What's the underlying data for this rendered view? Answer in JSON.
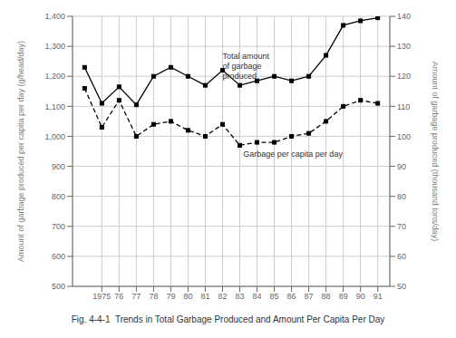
{
  "chart_data": {
    "type": "line",
    "title": "Fig. 4-4-1  Trends in Total Garbage Produced and Amount Per Capita Per Day",
    "x": [
      1974,
      1975,
      1976,
      1977,
      1978,
      1979,
      1980,
      1981,
      1982,
      1983,
      1984,
      1985,
      1986,
      1987,
      1988,
      1989,
      1990,
      1991
    ],
    "series": [
      {
        "values": [
          1230,
          1110,
          1165,
          1105,
          1200,
          1230,
          1200,
          1170,
          1220,
          1170,
          1185,
          1200,
          1185,
          1200,
          1270,
          1370,
          1385,
          1395
        ],
        "color": "#000000",
        "line_style": "solid",
        "marker": "square"
      },
      {
        "values": [
          116,
          103,
          112,
          100,
          104,
          105,
          102,
          100,
          104,
          97,
          98,
          98,
          100,
          101,
          105,
          110,
          112,
          111
        ],
        "color": "#000000",
        "line_style": "dashed",
        "marker": "square",
        "axis": "y2"
      }
    ],
    "ylabel": "Amount of garbage produced per capita per day (g/head/day)",
    "y2label": "Amount of garbage produced (thousand tons/day)",
    "xlim": [
      1973.3,
      1991.7
    ],
    "xticks": [
      1975,
      {
        "value": 1976,
        "label": "76"
      },
      {
        "value": 1977,
        "label": "77"
      },
      {
        "value": 1978,
        "label": "78"
      },
      {
        "value": 1979,
        "label": "79"
      },
      {
        "value": 1980,
        "label": "80"
      },
      {
        "value": 1981,
        "label": "81"
      },
      {
        "value": 1982,
        "label": "82"
      },
      {
        "value": 1983,
        "label": "83"
      },
      {
        "value": 1984,
        "label": "84"
      },
      {
        "value": 1985,
        "label": "85"
      },
      {
        "value": 1986,
        "label": "86"
      },
      {
        "value": 1987,
        "label": "87"
      },
      {
        "value": 1988,
        "label": "88"
      },
      {
        "value": 1989,
        "label": "89"
      },
      {
        "value": 1990,
        "label": "90"
      },
      {
        "value": 1991,
        "label": "91"
      }
    ],
    "ylim": [
      500,
      1400
    ],
    "yticks": [
      500,
      600,
      700,
      800,
      900,
      {
        "value": 1000,
        "label": "1,000"
      },
      {
        "value": 1100,
        "label": "1,100"
      },
      {
        "value": 1200,
        "label": "1,200"
      },
      {
        "value": 1300,
        "label": "1,300"
      },
      {
        "value": 1400,
        "label": "1,400"
      }
    ],
    "y2lim": [
      50,
      140
    ],
    "y2ticks": [
      50,
      60,
      70,
      80,
      90,
      100,
      110,
      120,
      130,
      140
    ],
    "grid": true,
    "annotations": [
      {
        "text": "Total amount\nof garbage\nproduced",
        "x": 1982.0,
        "y": 1235
      },
      {
        "text": "Garbage per capita per day",
        "x": 1983.2,
        "y": 940
      }
    ]
  }
}
